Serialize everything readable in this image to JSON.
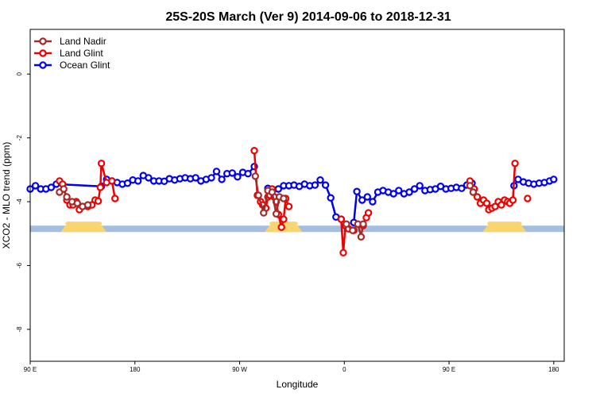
{
  "chart_data": {
    "type": "line",
    "title": "25S-20S March (Ver 9)   2014-09-06 to 2018-12-31",
    "xlabel": "Longitude",
    "ylabel": "XCO2 - MLO trend (ppm)",
    "xlim": [
      -90,
      420
    ],
    "ylim": [
      -9,
      1.4
    ],
    "xticks": [
      {
        "value": -90,
        "label": "90 E"
      },
      {
        "value": 10,
        "label": "180"
      },
      {
        "value": 110,
        "label": "90 W"
      },
      {
        "value": 210,
        "label": "0"
      },
      {
        "value": 310,
        "label": "90 E"
      },
      {
        "value": 410,
        "label": "180"
      }
    ],
    "yticks": [
      {
        "value": 0,
        "label": "0"
      },
      {
        "value": -2,
        "label": "-2"
      },
      {
        "value": -4,
        "label": "-4"
      },
      {
        "value": -6,
        "label": "-6"
      },
      {
        "value": -8,
        "label": "-8"
      }
    ],
    "land_band": {
      "y_top": -4.75,
      "y_bottom": -4.95,
      "ocean_color": "#a4bee0",
      "land_color": "#f9d56b",
      "land_segments": [
        [
          -61,
          -17
        ],
        [
          134,
          170
        ],
        [
          342,
          384
        ]
      ]
    },
    "legend": [
      {
        "name": "Land Nadir",
        "color": "#a52a2a"
      },
      {
        "name": "Land Glint",
        "color": "#ee0000"
      },
      {
        "name": "Ocean Glint",
        "color": "#0000ee"
      }
    ],
    "series": [
      {
        "name": "Ocean Glint",
        "color": "#0000ee",
        "segments": [
          [
            [
              -90,
              -3.6
            ],
            [
              -85,
              -3.5
            ],
            [
              -80,
              -3.6
            ],
            [
              -75,
              -3.6
            ],
            [
              -70,
              -3.55
            ],
            [
              -65,
              -3.45
            ],
            [
              -22,
              -3.52
            ],
            [
              -17,
              -3.3
            ],
            [
              -12,
              -3.35
            ],
            [
              -7,
              -3.4
            ],
            [
              -2,
              -3.45
            ],
            [
              3,
              -3.42
            ],
            [
              8,
              -3.32
            ],
            [
              13,
              -3.35
            ],
            [
              18,
              -3.18
            ],
            [
              23,
              -3.25
            ],
            [
              28,
              -3.35
            ],
            [
              33,
              -3.35
            ],
            [
              38,
              -3.36
            ],
            [
              43,
              -3.28
            ],
            [
              48,
              -3.32
            ],
            [
              53,
              -3.28
            ],
            [
              58,
              -3.25
            ],
            [
              63,
              -3.28
            ],
            [
              68,
              -3.25
            ],
            [
              73,
              -3.35
            ],
            [
              78,
              -3.3
            ],
            [
              83,
              -3.25
            ],
            [
              88,
              -3.05
            ],
            [
              93,
              -3.3
            ],
            [
              98,
              -3.12
            ],
            [
              103,
              -3.1
            ],
            [
              108,
              -3.22
            ],
            [
              113,
              -3.08
            ],
            [
              118,
              -3.12
            ],
            [
              124,
              -2.9
            ]
          ],
          [
            [
              137,
              -3.58
            ],
            [
              142,
              -3.62
            ],
            [
              147,
              -3.6
            ],
            [
              152,
              -3.5
            ],
            [
              157,
              -3.5
            ],
            [
              162,
              -3.48
            ],
            [
              167,
              -3.52
            ],
            [
              172,
              -3.45
            ],
            [
              177,
              -3.5
            ],
            [
              182,
              -3.48
            ],
            [
              187,
              -3.32
            ],
            [
              192,
              -3.48
            ],
            [
              197,
              -3.88
            ],
            [
              202,
              -4.48
            ],
            [
              207,
              -4.55
            ]
          ],
          [
            [
              219,
              -4.65
            ],
            [
              222,
              -3.68
            ],
            [
              227,
              -3.95
            ],
            [
              232,
              -3.85
            ],
            [
              237,
              -4.0
            ],
            [
              242,
              -3.7
            ],
            [
              247,
              -3.65
            ],
            [
              252,
              -3.7
            ],
            [
              257,
              -3.75
            ],
            [
              262,
              -3.65
            ],
            [
              267,
              -3.75
            ],
            [
              272,
              -3.7
            ],
            [
              277,
              -3.6
            ],
            [
              282,
              -3.5
            ],
            [
              287,
              -3.65
            ],
            [
              292,
              -3.62
            ],
            [
              297,
              -3.6
            ],
            [
              302,
              -3.52
            ],
            [
              307,
              -3.6
            ],
            [
              312,
              -3.58
            ],
            [
              317,
              -3.55
            ],
            [
              322,
              -3.58
            ],
            [
              327,
              -3.48
            ],
            [
              332,
              -3.42
            ]
          ],
          [
            [
              372,
              -3.5
            ],
            [
              376,
              -3.3
            ],
            [
              381,
              -3.38
            ],
            [
              386,
              -3.42
            ],
            [
              391,
              -3.45
            ],
            [
              396,
              -3.42
            ],
            [
              401,
              -3.4
            ],
            [
              406,
              -3.35
            ],
            [
              410,
              -3.3
            ]
          ]
        ]
      },
      {
        "name": "Land Glint",
        "color": "#ee0000",
        "segments": [
          [
            [
              -62,
              -3.35
            ],
            [
              -59,
              -3.45
            ],
            [
              -55,
              -3.95
            ],
            [
              -52,
              -4.1
            ],
            [
              -49,
              -4.1
            ],
            [
              -46,
              -4.0
            ],
            [
              -43,
              -4.25
            ],
            [
              -40,
              -4.15
            ],
            [
              -35,
              -4.15
            ],
            [
              -31,
              -4.1
            ],
            [
              -28,
              -3.95
            ],
            [
              -25,
              -3.98
            ],
            [
              -23,
              -3.55
            ],
            [
              -22,
              -2.8
            ],
            [
              -17,
              -3.4
            ],
            [
              -12,
              -3.35
            ],
            [
              -9,
              -3.9
            ]
          ],
          [
            [
              124,
              -2.4
            ],
            [
              127,
              -3.8
            ],
            [
              130,
              -4.0
            ],
            [
              132,
              -4.1
            ],
            [
              135,
              -4.2
            ],
            [
              137,
              -3.85
            ],
            [
              139,
              -3.8
            ],
            [
              141,
              -3.6
            ],
            [
              143,
              -3.85
            ],
            [
              145,
              -4.0
            ],
            [
              147,
              -4.4
            ],
            [
              150,
              -4.8
            ],
            [
              152,
              -4.55
            ],
            [
              154,
              -3.9
            ],
            [
              157,
              -4.15
            ]
          ],
          [
            [
              207,
              -4.55
            ],
            [
              209,
              -5.6
            ],
            [
              211,
              -4.75
            ],
            [
              214,
              -4.85
            ],
            [
              219,
              -4.9
            ]
          ],
          [
            [
              228,
              -4.75
            ],
            [
              231,
              -4.5
            ],
            [
              233,
              -4.35
            ]
          ],
          [
            [
              330,
              -3.35
            ],
            [
              334,
              -3.6
            ],
            [
              337,
              -3.85
            ],
            [
              340,
              -4.05
            ],
            [
              343,
              -3.95
            ],
            [
              346,
              -4.05
            ],
            [
              348,
              -4.25
            ],
            [
              351,
              -4.2
            ],
            [
              354,
              -4.15
            ],
            [
              357,
              -4.0
            ],
            [
              360,
              -4.1
            ],
            [
              363,
              -3.95
            ],
            [
              366,
              -4.0
            ],
            [
              368,
              -4.05
            ],
            [
              371,
              -3.95
            ],
            [
              373,
              -2.8
            ]
          ],
          [
            [
              385,
              -3.9
            ]
          ]
        ]
      },
      {
        "name": "Land Nadir",
        "color": "#a52a2a",
        "segments": [
          [
            [
              -62,
              -3.7
            ],
            [
              -58,
              -3.6
            ],
            [
              -55,
              -3.85
            ],
            [
              -50,
              -4.0
            ],
            [
              -45,
              -4.05
            ],
            [
              -40,
              -4.15
            ],
            [
              -35,
              -4.1
            ]
          ],
          [
            [
              125,
              -3.2
            ],
            [
              128,
              -3.8
            ],
            [
              133,
              -4.35
            ],
            [
              137,
              -3.65
            ],
            [
              141,
              -3.7
            ],
            [
              145,
              -4.38
            ],
            [
              148,
              -3.85
            ],
            [
              152,
              -3.9
            ]
          ],
          [
            [
              212,
              -4.7
            ],
            [
              218,
              -4.9
            ],
            [
              223,
              -4.7
            ],
            [
              226,
              -5.1
            ],
            [
              228,
              -4.7
            ]
          ],
          [
            [
              330,
              -3.5
            ],
            [
              333,
              -3.7
            ]
          ]
        ]
      }
    ]
  }
}
